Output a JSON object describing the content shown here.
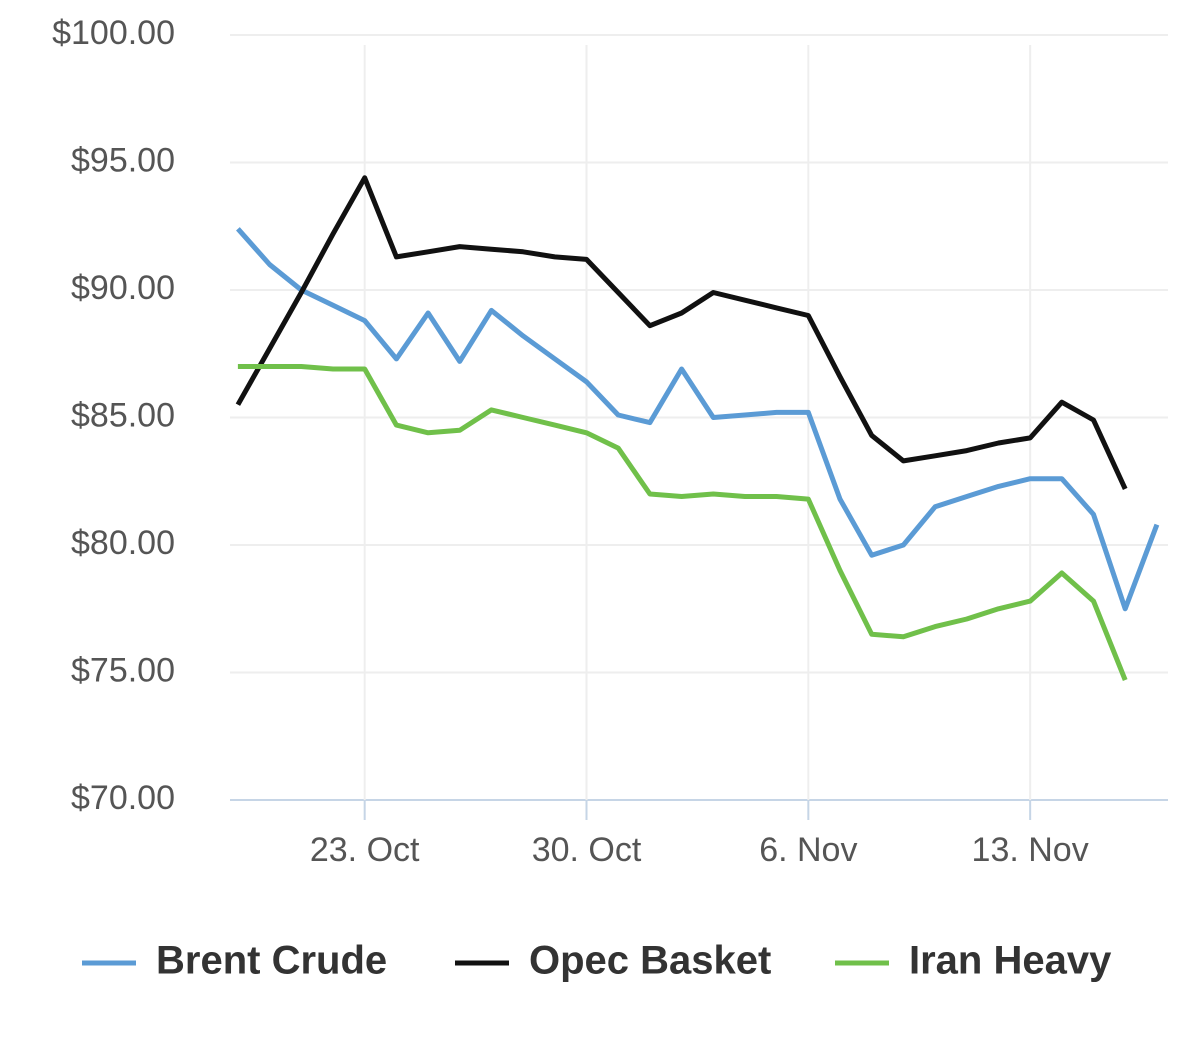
{
  "chart_data": {
    "type": "line",
    "x": [
      "19. Oct",
      "20. Oct",
      "21. Oct",
      "22. Oct",
      "23. Oct",
      "24. Oct",
      "25. Oct",
      "26. Oct",
      "27. Oct",
      "28. Oct",
      "29. Oct",
      "30. Oct",
      "31. Oct",
      "1. Nov",
      "2. Nov",
      "3. Nov",
      "4. Nov",
      "5. Nov",
      "6. Nov",
      "7. Nov",
      "8. Nov",
      "9. Nov",
      "10. Nov",
      "11. Nov",
      "12. Nov",
      "13. Nov",
      "14. Nov",
      "15. Nov",
      "16. Nov",
      "17. Nov"
    ],
    "xticks": [
      "23. Oct",
      "30. Oct",
      "6. Nov",
      "13. Nov"
    ],
    "series": [
      {
        "name": "Brent Crude",
        "color": "#5b9bd5",
        "values": [
          92.4,
          91.0,
          90.0,
          89.4,
          88.8,
          87.3,
          89.1,
          87.2,
          89.2,
          88.2,
          87.3,
          86.4,
          85.1,
          84.8,
          86.9,
          85.0,
          85.1,
          85.2,
          85.2,
          81.8,
          79.6,
          80.0,
          81.5,
          81.9,
          82.3,
          82.6,
          82.6,
          81.2,
          77.5,
          80.8
        ]
      },
      {
        "name": "Opec Basket",
        "color": "#111111",
        "values": [
          85.5,
          87.7,
          89.9,
          92.2,
          94.4,
          91.3,
          91.5,
          91.7,
          91.6,
          91.5,
          91.3,
          91.2,
          89.9,
          88.6,
          89.1,
          89.9,
          89.6,
          89.3,
          89.0,
          86.6,
          84.3,
          83.3,
          83.5,
          83.7,
          84.0,
          84.2,
          85.6,
          84.9,
          82.2,
          null
        ]
      },
      {
        "name": "Iran Heavy",
        "color": "#70c04a",
        "values": [
          87.0,
          87.0,
          87.0,
          86.9,
          86.9,
          84.7,
          84.4,
          84.5,
          85.3,
          85.0,
          84.7,
          84.4,
          83.8,
          82.0,
          81.9,
          82.0,
          81.9,
          81.9,
          81.8,
          79.0,
          76.5,
          76.4,
          76.8,
          77.1,
          77.5,
          77.8,
          78.9,
          77.8,
          74.7,
          null
        ]
      }
    ],
    "ylim": [
      70,
      100
    ],
    "yticks": [
      {
        "value": 70,
        "label": "$70.00"
      },
      {
        "value": 75,
        "label": "$75.00"
      },
      {
        "value": 80,
        "label": "$80.00"
      },
      {
        "value": 85,
        "label": "$85.00"
      },
      {
        "value": 90,
        "label": "$90.00"
      },
      {
        "value": 95,
        "label": "$95.00"
      },
      {
        "value": 100,
        "label": "$100.00"
      }
    ],
    "grid": true,
    "legend": "bottom"
  }
}
